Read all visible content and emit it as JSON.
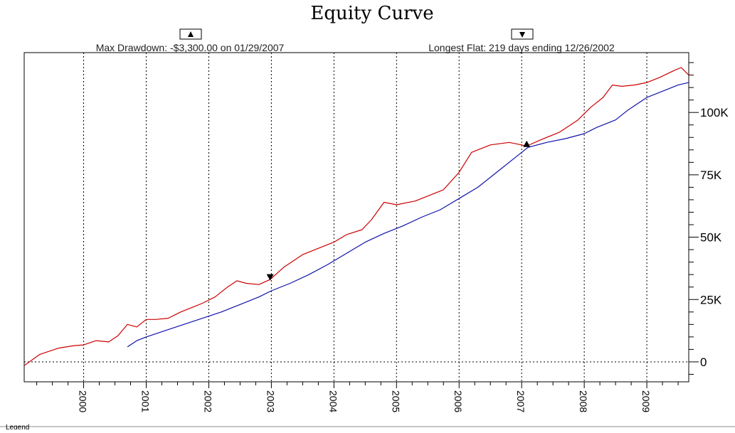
{
  "chart_data": {
    "type": "line",
    "title": "Equity Curve",
    "xlabel": "",
    "ylabel": "",
    "xlim": [
      1999.05,
      2009.67
    ],
    "ylim": [
      -8000,
      124000
    ],
    "x_ticks": [
      "2000",
      "2001",
      "2002",
      "2003",
      "2004",
      "2005",
      "2006",
      "2007",
      "2008",
      "2009"
    ],
    "y_ticks": [
      {
        "value": 0,
        "label": "0"
      },
      {
        "value": 25000,
        "label": "25K"
      },
      {
        "value": 50000,
        "label": "50K"
      },
      {
        "value": 75000,
        "label": "75K"
      },
      {
        "value": 100000,
        "label": "100K"
      }
    ],
    "grid": "vertical dotted at years, horizontal dotted at 0",
    "annotations": {
      "max_drawdown": "Max Drawdown: -$3,300.00 on 01/29/2007",
      "longest_flat": "Longest Flat: 219 days ending 12/26/2002",
      "max_drawdown_marker": {
        "x": 2007.08,
        "y": 87000,
        "symbol": "triangle-up"
      },
      "longest_flat_marker": {
        "x": 2002.98,
        "y": 34000,
        "symbol": "triangle-down"
      }
    },
    "legend_label": "Legend",
    "series": [
      {
        "color": "#cc0000",
        "x": [
          1999.05,
          1999.3,
          1999.6,
          1999.85,
          2000.0,
          2000.2,
          2000.4,
          2000.55,
          2000.7,
          2000.85,
          2001.0,
          2001.15,
          2001.35,
          2001.55,
          2001.75,
          2001.9,
          2002.1,
          2002.3,
          2002.45,
          2002.6,
          2002.8,
          2002.98,
          2003.2,
          2003.5,
          2003.8,
          2004.0,
          2004.2,
          2004.45,
          2004.6,
          2004.8,
          2005.0,
          2005.3,
          2005.5,
          2005.75,
          2006.0,
          2006.2,
          2006.5,
          2006.8,
          2007.0,
          2007.08,
          2007.3,
          2007.6,
          2007.9,
          2008.1,
          2008.3,
          2008.45,
          2008.6,
          2008.8,
          2009.0,
          2009.2,
          2009.45,
          2009.55,
          2009.67
        ],
        "y": [
          -1500,
          3000,
          5500,
          6500,
          6800,
          8500,
          8000,
          10500,
          15000,
          14000,
          17000,
          17000,
          17500,
          20000,
          22000,
          23500,
          26000,
          30000,
          32500,
          31500,
          31000,
          33000,
          38000,
          43000,
          46000,
          48000,
          51000,
          53000,
          57000,
          64000,
          63000,
          64500,
          66500,
          69000,
          76000,
          84000,
          87000,
          88000,
          87000,
          86500,
          89000,
          92000,
          97000,
          102000,
          106000,
          111000,
          110500,
          111000,
          112000,
          114000,
          117000,
          118000,
          115000
        ]
      },
      {
        "color": "#1111aa",
        "x": [
          2000.7,
          2000.85,
          2001.0,
          2001.3,
          2001.6,
          2001.9,
          2002.2,
          2002.5,
          2002.8,
          2003.0,
          2003.3,
          2003.6,
          2003.9,
          2004.2,
          2004.5,
          2004.8,
          2005.1,
          2005.4,
          2005.7,
          2006.0,
          2006.3,
          2006.6,
          2006.9,
          2007.1,
          2007.4,
          2007.7,
          2008.0,
          2008.2,
          2008.5,
          2008.7,
          2009.0,
          2009.3,
          2009.5,
          2009.67
        ],
        "y": [
          6000,
          8500,
          10000,
          12500,
          15000,
          17500,
          20000,
          23000,
          26000,
          28500,
          31500,
          35000,
          39000,
          43500,
          48000,
          51500,
          54500,
          58000,
          61000,
          65500,
          70000,
          76000,
          82000,
          86000,
          88000,
          89500,
          91500,
          94000,
          97000,
          101000,
          106000,
          109000,
          111000,
          112000
        ]
      }
    ]
  }
}
